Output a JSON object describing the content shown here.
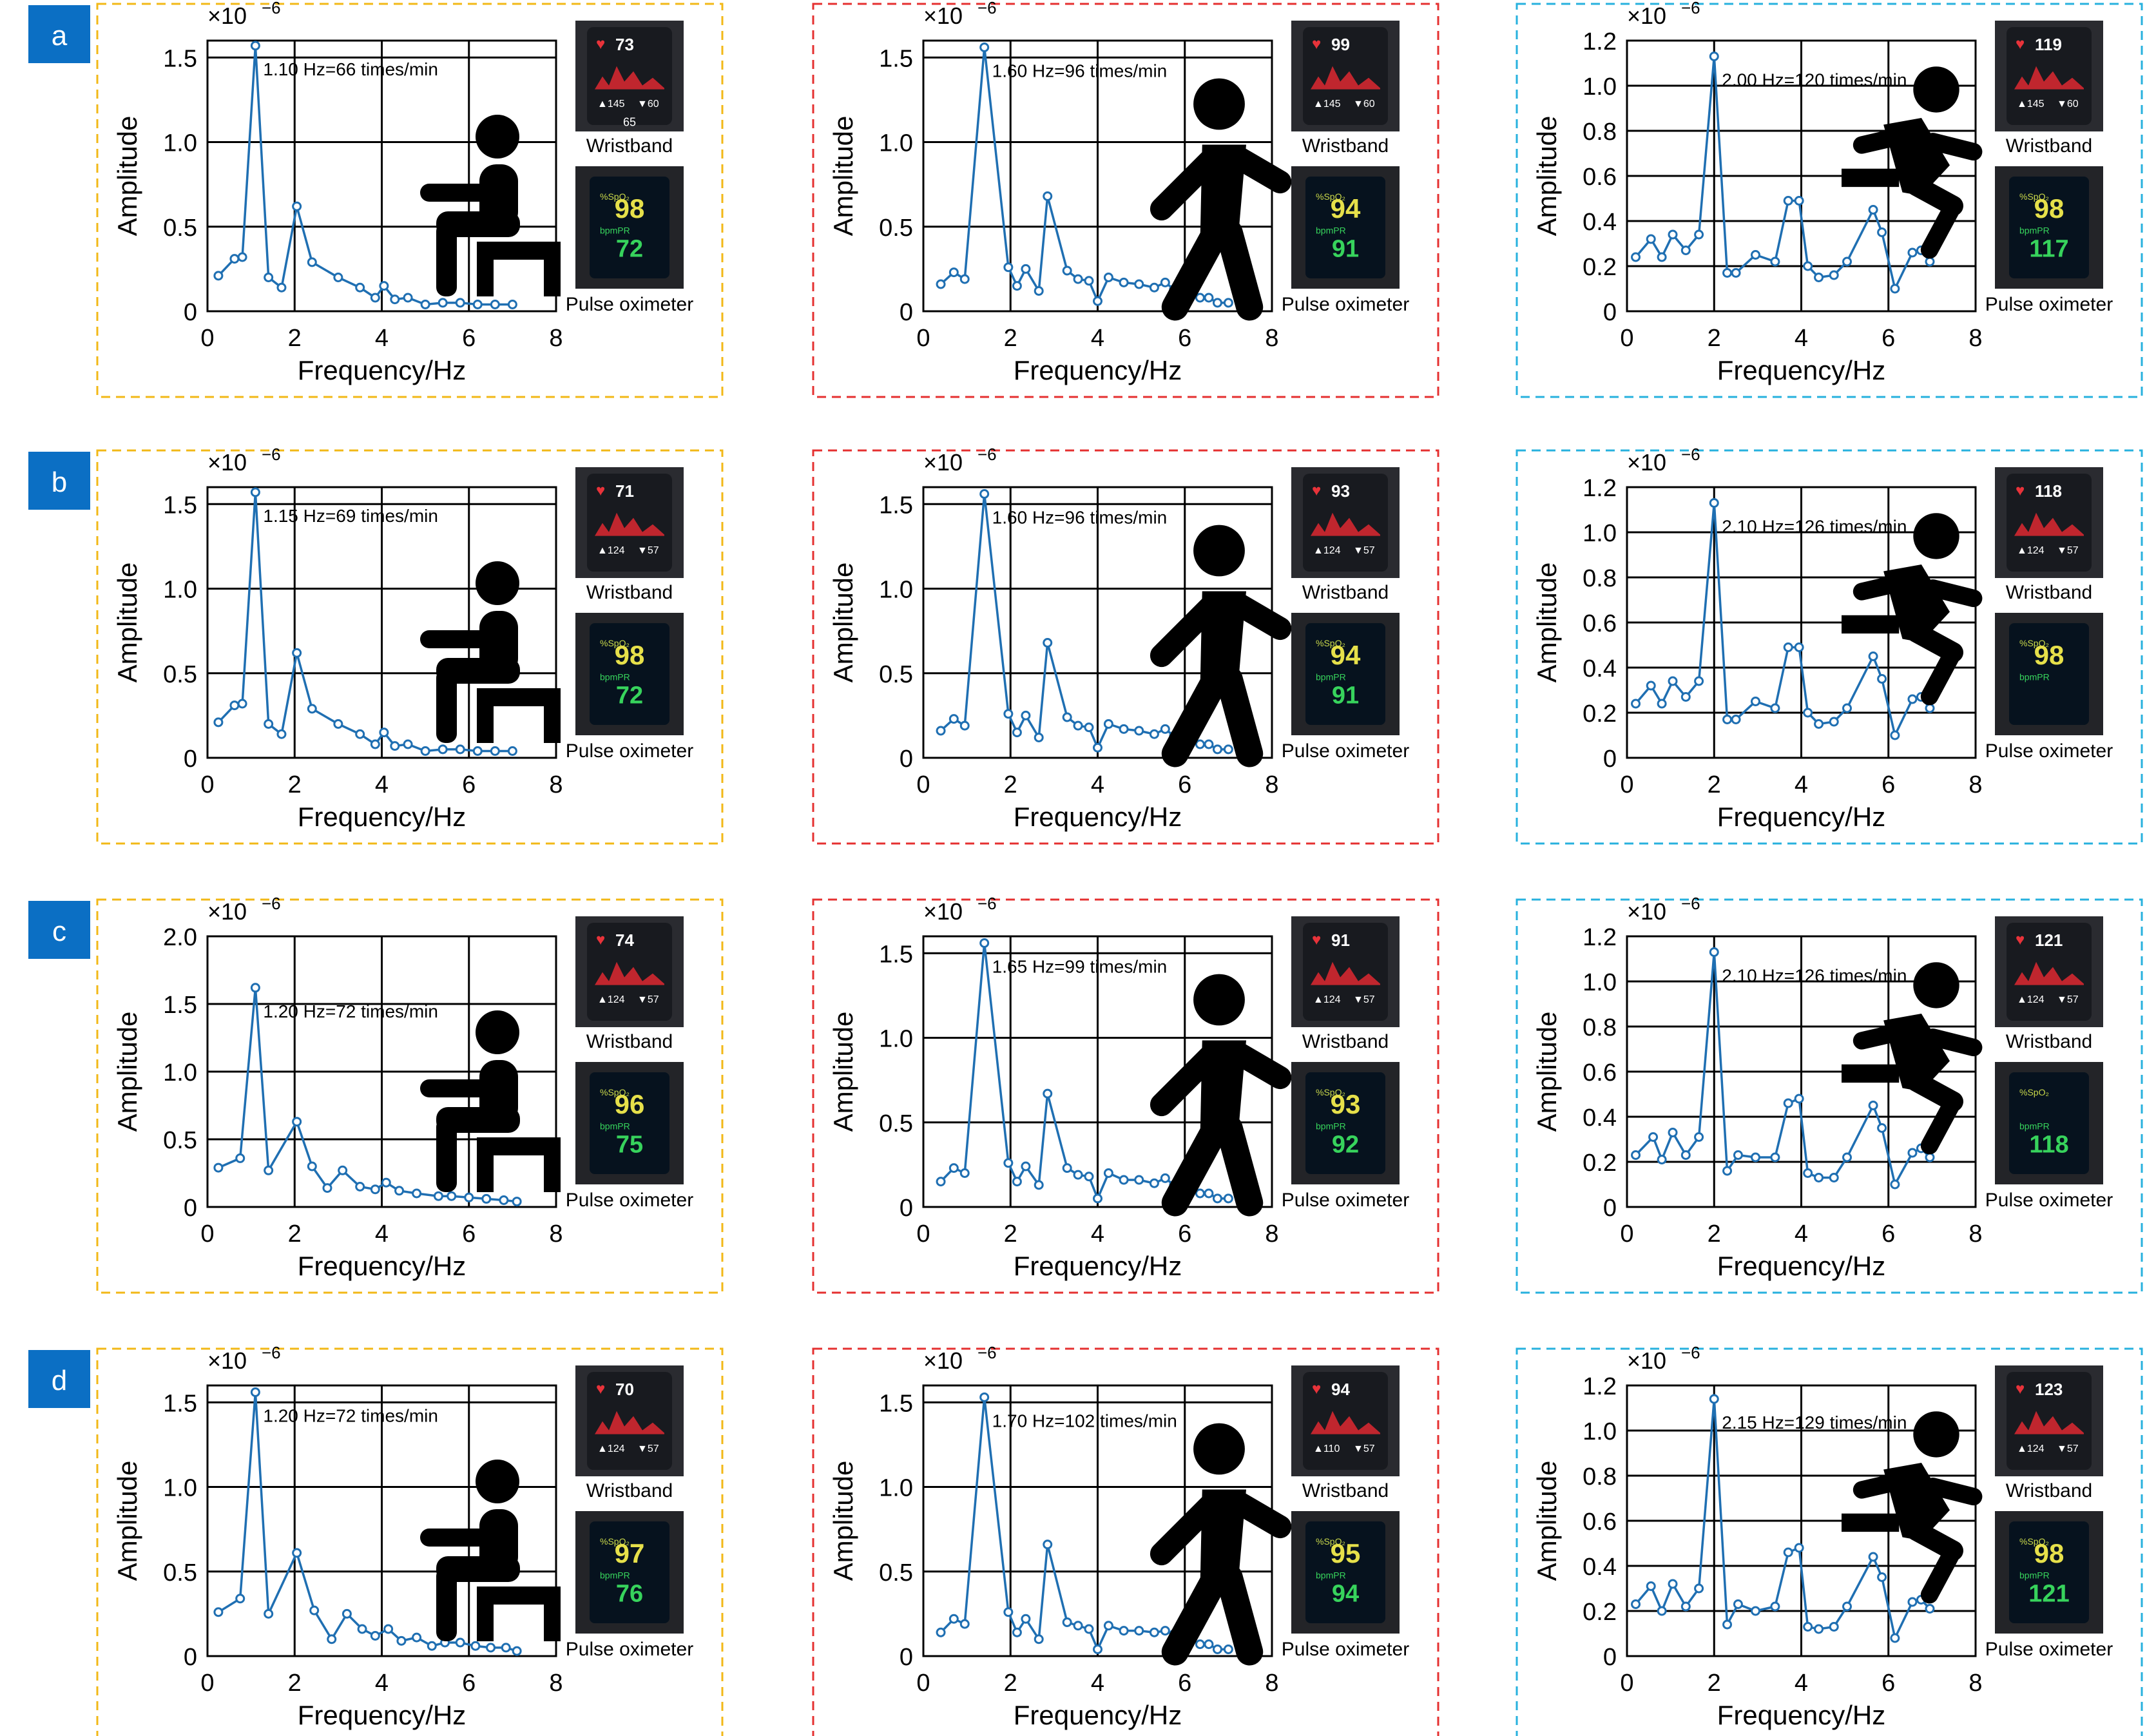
{
  "common": {
    "xlabel": "Frequency/Hz",
    "ylabel": "Amplitude",
    "multiplier": "×10",
    "multiplier_exp": "−6",
    "wristband_label": "Wristband",
    "oximeter_label": "Pulse oximeter",
    "x_ticks": [
      0,
      2,
      4,
      6,
      8
    ]
  },
  "colors": {
    "series": "#1f6fb2",
    "frame_sit": "#f2b817",
    "frame_walk": "#e53030",
    "frame_run": "#27b1de",
    "badge": "#0b6fc4",
    "device_screen": "#181a1f"
  },
  "rows": [
    {
      "label": "a"
    },
    {
      "label": "b"
    },
    {
      "label": "c"
    },
    {
      "label": "d"
    }
  ],
  "chart_data": [
    {
      "type": "line",
      "row": "a",
      "activity": "sitting",
      "icon": "person-sitting-icon",
      "ylim": [
        0,
        1.6
      ],
      "y_ticks": [
        "0",
        "0.5",
        "1.0",
        "1.5"
      ],
      "peak_annotation": "1.10 Hz=66 times/min",
      "wristband_reading": "73",
      "wristband_sub": [
        "145",
        "60",
        "65"
      ],
      "oximeter_spo2": "98",
      "oximeter_pr": "72",
      "x": [
        0.25,
        0.62,
        0.8,
        1.1,
        1.4,
        1.7,
        2.05,
        2.4,
        3.0,
        3.5,
        3.85,
        4.05,
        4.3,
        4.6,
        5.0,
        5.4,
        5.8,
        6.2,
        6.6,
        7.0
      ],
      "y": [
        0.21,
        0.31,
        0.32,
        1.57,
        0.2,
        0.14,
        0.62,
        0.29,
        0.2,
        0.14,
        0.08,
        0.15,
        0.07,
        0.08,
        0.04,
        0.05,
        0.05,
        0.04,
        0.04,
        0.04
      ]
    },
    {
      "type": "line",
      "row": "a",
      "activity": "walking",
      "icon": "person-walking-icon",
      "ylim": [
        0,
        1.6
      ],
      "y_ticks": [
        "0",
        "0.5",
        "1.0",
        "1.5"
      ],
      "peak_annotation": "1.60 Hz=96 times/min",
      "wristband_reading": "99",
      "wristband_sub": [
        "145",
        "60"
      ],
      "oximeter_spo2": "94",
      "oximeter_pr": "91",
      "x": [
        0.4,
        0.7,
        0.95,
        1.4,
        1.95,
        2.15,
        2.35,
        2.65,
        2.85,
        3.3,
        3.55,
        3.8,
        4.0,
        4.25,
        4.6,
        4.95,
        5.3,
        5.55,
        5.75,
        6.0,
        6.35,
        6.55,
        6.75,
        7.0
      ],
      "y": [
        0.16,
        0.23,
        0.19,
        1.56,
        0.26,
        0.15,
        0.25,
        0.12,
        0.68,
        0.24,
        0.19,
        0.18,
        0.06,
        0.2,
        0.17,
        0.16,
        0.14,
        0.17,
        0.13,
        0.14,
        0.08,
        0.08,
        0.05,
        0.05
      ]
    },
    {
      "type": "line",
      "row": "a",
      "activity": "running",
      "icon": "person-running-icon",
      "ylim": [
        0,
        1.2
      ],
      "y_ticks": [
        "0",
        "0.2",
        "0.4",
        "0.6",
        "0.8",
        "1.0",
        "1.2"
      ],
      "peak_annotation": "2.00 Hz=120 times/min",
      "wristband_reading": "119",
      "wristband_sub": [
        "145",
        "60"
      ],
      "oximeter_spo2": "98",
      "oximeter_pr": "117",
      "x": [
        0.2,
        0.55,
        0.8,
        1.05,
        1.35,
        1.65,
        2.0,
        2.3,
        2.5,
        2.95,
        3.4,
        3.7,
        3.95,
        4.15,
        4.4,
        4.75,
        5.05,
        5.65,
        5.85,
        6.15,
        6.55,
        6.75,
        6.95
      ],
      "y": [
        0.24,
        0.32,
        0.24,
        0.34,
        0.27,
        0.34,
        1.13,
        0.17,
        0.17,
        0.25,
        0.22,
        0.49,
        0.49,
        0.2,
        0.15,
        0.16,
        0.22,
        0.45,
        0.35,
        0.1,
        0.26,
        0.27,
        0.22
      ]
    },
    {
      "type": "line",
      "row": "b",
      "activity": "sitting",
      "icon": "person-sitting-icon",
      "ylim": [
        0,
        1.6
      ],
      "y_ticks": [
        "0",
        "0.5",
        "1.0",
        "1.5"
      ],
      "peak_annotation": "1.15 Hz=69 times/min",
      "wristband_reading": "71",
      "wristband_sub": [
        "124",
        "57"
      ],
      "oximeter_spo2": "98",
      "oximeter_pr": "72",
      "x": [
        0.25,
        0.62,
        0.8,
        1.1,
        1.4,
        1.7,
        2.05,
        2.4,
        3.0,
        3.5,
        3.85,
        4.05,
        4.3,
        4.6,
        5.0,
        5.4,
        5.8,
        6.2,
        6.6,
        7.0
      ],
      "y": [
        0.21,
        0.31,
        0.32,
        1.57,
        0.2,
        0.14,
        0.62,
        0.29,
        0.2,
        0.14,
        0.08,
        0.15,
        0.07,
        0.08,
        0.04,
        0.05,
        0.05,
        0.04,
        0.04,
        0.04
      ]
    },
    {
      "type": "line",
      "row": "b",
      "activity": "walking",
      "icon": "person-walking-icon",
      "ylim": [
        0,
        1.6
      ],
      "y_ticks": [
        "0",
        "0.5",
        "1.0",
        "1.5"
      ],
      "peak_annotation": "1.60 Hz=96 times/min",
      "wristband_reading": "93",
      "wristband_sub": [
        "124",
        "57"
      ],
      "oximeter_spo2": "94",
      "oximeter_pr": "91",
      "x": [
        0.4,
        0.7,
        0.95,
        1.4,
        1.95,
        2.15,
        2.35,
        2.65,
        2.85,
        3.3,
        3.55,
        3.8,
        4.0,
        4.25,
        4.6,
        4.95,
        5.3,
        5.55,
        5.75,
        6.0,
        6.35,
        6.55,
        6.75,
        7.0
      ],
      "y": [
        0.16,
        0.23,
        0.19,
        1.56,
        0.26,
        0.15,
        0.25,
        0.12,
        0.68,
        0.24,
        0.19,
        0.18,
        0.06,
        0.2,
        0.17,
        0.16,
        0.14,
        0.17,
        0.13,
        0.14,
        0.08,
        0.08,
        0.05,
        0.05
      ]
    },
    {
      "type": "line",
      "row": "b",
      "activity": "running",
      "icon": "person-running-icon",
      "ylim": [
        0,
        1.2
      ],
      "y_ticks": [
        "0",
        "0.2",
        "0.4",
        "0.6",
        "0.8",
        "1.0",
        "1.2"
      ],
      "peak_annotation": "2.10 Hz=126 times/min",
      "wristband_reading": "118",
      "wristband_sub": [
        "124",
        "57"
      ],
      "oximeter_spo2": "98",
      "oximeter_pr": "",
      "x": [
        0.2,
        0.55,
        0.8,
        1.05,
        1.35,
        1.65,
        2.0,
        2.3,
        2.5,
        2.95,
        3.4,
        3.7,
        3.95,
        4.15,
        4.4,
        4.75,
        5.05,
        5.65,
        5.85,
        6.15,
        6.55,
        6.75,
        6.95
      ],
      "y": [
        0.24,
        0.32,
        0.24,
        0.34,
        0.27,
        0.34,
        1.13,
        0.17,
        0.17,
        0.25,
        0.22,
        0.49,
        0.49,
        0.2,
        0.15,
        0.16,
        0.22,
        0.45,
        0.35,
        0.1,
        0.26,
        0.27,
        0.22
      ]
    },
    {
      "type": "line",
      "row": "c",
      "activity": "sitting",
      "icon": "person-sitting-icon",
      "ylim": [
        0,
        2.0
      ],
      "y_ticks": [
        "0",
        "0.5",
        "1.0",
        "1.5",
        "2.0"
      ],
      "peak_annotation": "1.20 Hz=72 times/min",
      "wristband_reading": "74",
      "wristband_sub": [
        "124",
        "57"
      ],
      "oximeter_spo2": "96",
      "oximeter_pr": "75",
      "x": [
        0.25,
        0.75,
        1.1,
        1.4,
        2.05,
        2.4,
        2.75,
        3.1,
        3.5,
        3.85,
        4.1,
        4.4,
        4.8,
        5.3,
        5.6,
        6.0,
        6.4,
        6.8,
        7.1
      ],
      "y": [
        0.29,
        0.36,
        1.62,
        0.27,
        0.63,
        0.3,
        0.14,
        0.27,
        0.15,
        0.13,
        0.18,
        0.12,
        0.1,
        0.08,
        0.08,
        0.07,
        0.06,
        0.05,
        0.04
      ]
    },
    {
      "type": "line",
      "row": "c",
      "activity": "walking",
      "icon": "person-walking-icon",
      "ylim": [
        0,
        1.6
      ],
      "y_ticks": [
        "0",
        "0.5",
        "1.0",
        "1.5"
      ],
      "peak_annotation": "1.65 Hz=99 times/min",
      "wristband_reading": "91",
      "wristband_sub": [
        "124",
        "57"
      ],
      "oximeter_spo2": "93",
      "oximeter_pr": "92",
      "x": [
        0.4,
        0.7,
        0.95,
        1.4,
        1.95,
        2.15,
        2.35,
        2.65,
        2.85,
        3.3,
        3.55,
        3.8,
        4.0,
        4.25,
        4.6,
        4.95,
        5.3,
        5.55,
        5.75,
        6.0,
        6.35,
        6.55,
        6.75,
        7.0
      ],
      "y": [
        0.15,
        0.23,
        0.2,
        1.56,
        0.26,
        0.15,
        0.24,
        0.13,
        0.67,
        0.23,
        0.19,
        0.18,
        0.05,
        0.2,
        0.16,
        0.16,
        0.14,
        0.17,
        0.13,
        0.14,
        0.08,
        0.08,
        0.05,
        0.05
      ]
    },
    {
      "type": "line",
      "row": "c",
      "activity": "running",
      "icon": "person-running-icon",
      "ylim": [
        0,
        1.2
      ],
      "y_ticks": [
        "0",
        "0.2",
        "0.4",
        "0.6",
        "0.8",
        "1.0",
        "1.2"
      ],
      "peak_annotation": "2.10 Hz=126 times/min",
      "wristband_reading": "121",
      "wristband_sub": [
        "124",
        "57"
      ],
      "oximeter_spo2": "",
      "oximeter_pr": "118",
      "x": [
        0.2,
        0.6,
        0.8,
        1.05,
        1.35,
        1.65,
        2.0,
        2.3,
        2.55,
        2.95,
        3.4,
        3.7,
        3.95,
        4.15,
        4.4,
        4.75,
        5.05,
        5.65,
        5.85,
        6.15,
        6.55,
        6.75,
        6.95
      ],
      "y": [
        0.23,
        0.31,
        0.21,
        0.33,
        0.23,
        0.31,
        1.13,
        0.16,
        0.23,
        0.22,
        0.22,
        0.46,
        0.48,
        0.15,
        0.13,
        0.13,
        0.22,
        0.45,
        0.35,
        0.1,
        0.24,
        0.26,
        0.22
      ]
    },
    {
      "type": "line",
      "row": "d",
      "activity": "sitting",
      "icon": "person-sitting-icon",
      "ylim": [
        0,
        1.6
      ],
      "y_ticks": [
        "0",
        "0.5",
        "1.0",
        "1.5"
      ],
      "peak_annotation": "1.20 Hz=72 times/min",
      "wristband_reading": "70",
      "wristband_sub": [
        "124",
        "57"
      ],
      "oximeter_spo2": "97",
      "oximeter_pr": "76",
      "x": [
        0.25,
        0.75,
        1.1,
        1.4,
        2.05,
        2.45,
        2.85,
        3.2,
        3.55,
        3.85,
        4.15,
        4.45,
        4.8,
        5.15,
        5.45,
        5.8,
        6.15,
        6.5,
        6.85,
        7.1
      ],
      "y": [
        0.26,
        0.34,
        1.56,
        0.25,
        0.61,
        0.27,
        0.1,
        0.25,
        0.16,
        0.12,
        0.16,
        0.09,
        0.11,
        0.06,
        0.08,
        0.08,
        0.06,
        0.05,
        0.05,
        0.03
      ]
    },
    {
      "type": "line",
      "row": "d",
      "activity": "walking",
      "icon": "person-walking-icon",
      "ylim": [
        0,
        1.6
      ],
      "y_ticks": [
        "0",
        "0.5",
        "1.0",
        "1.5"
      ],
      "peak_annotation": "1.70 Hz=102 times/min",
      "wristband_reading": "94",
      "wristband_sub": [
        "110",
        "57"
      ],
      "oximeter_spo2": "95",
      "oximeter_pr": "94",
      "x": [
        0.4,
        0.7,
        0.95,
        1.4,
        1.95,
        2.15,
        2.35,
        2.65,
        2.85,
        3.3,
        3.55,
        3.8,
        4.0,
        4.25,
        4.6,
        4.95,
        5.3,
        5.55,
        5.75,
        6.0,
        6.35,
        6.55,
        6.75,
        7.0
      ],
      "y": [
        0.14,
        0.22,
        0.19,
        1.53,
        0.26,
        0.14,
        0.22,
        0.1,
        0.66,
        0.2,
        0.18,
        0.16,
        0.04,
        0.18,
        0.15,
        0.15,
        0.14,
        0.15,
        0.13,
        0.12,
        0.07,
        0.07,
        0.04,
        0.04
      ]
    },
    {
      "type": "line",
      "row": "d",
      "activity": "running",
      "icon": "person-running-icon",
      "ylim": [
        0,
        1.2
      ],
      "y_ticks": [
        "0",
        "0.2",
        "0.4",
        "0.6",
        "0.8",
        "1.0",
        "1.2"
      ],
      "peak_annotation": "2.15 Hz=129 times/min",
      "wristband_reading": "123",
      "wristband_sub": [
        "124",
        "57"
      ],
      "oximeter_spo2": "98",
      "oximeter_pr": "121",
      "x": [
        0.2,
        0.55,
        0.8,
        1.05,
        1.35,
        1.65,
        2.0,
        2.3,
        2.55,
        2.95,
        3.4,
        3.7,
        3.95,
        4.15,
        4.4,
        4.75,
        5.05,
        5.65,
        5.85,
        6.15,
        6.55,
        6.75,
        6.95
      ],
      "y": [
        0.23,
        0.31,
        0.2,
        0.32,
        0.22,
        0.3,
        1.14,
        0.14,
        0.23,
        0.2,
        0.22,
        0.46,
        0.48,
        0.13,
        0.12,
        0.13,
        0.22,
        0.44,
        0.35,
        0.08,
        0.24,
        0.25,
        0.21
      ]
    }
  ]
}
